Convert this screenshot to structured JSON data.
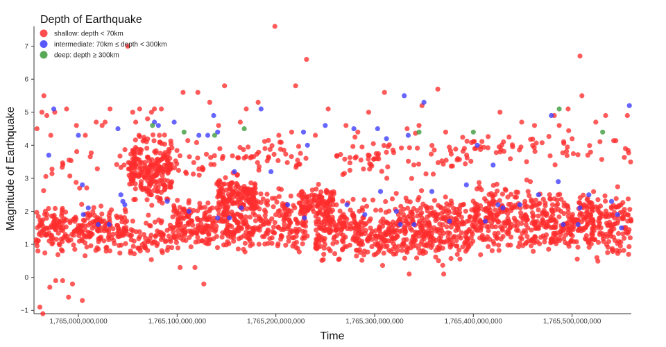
{
  "chart_data": {
    "type": "scatter",
    "title": "",
    "xlabel": "Time",
    "ylabel": "Magnitude of Earthquake",
    "xlim": [
      1764955000000,
      1765560000000
    ],
    "ylim": [
      -1.1,
      7.6
    ],
    "x_ticks": [
      {
        "value": 1765000000000,
        "label": "1,765,000,000,000"
      },
      {
        "value": 1765100000000,
        "label": "1,765,100,000,000"
      },
      {
        "value": 1765200000000,
        "label": "1,765,200,000,000"
      },
      {
        "value": 1765300000000,
        "label": "1,765,300,000,000"
      },
      {
        "value": 1765400000000,
        "label": "1,765,400,000,000"
      },
      {
        "value": 1765500000000,
        "label": "1,765,500,000,000"
      }
    ],
    "y_ticks": [
      {
        "value": -1,
        "label": "−1"
      },
      {
        "value": 0,
        "label": "0"
      },
      {
        "value": 1,
        "label": "1"
      },
      {
        "value": 2,
        "label": "2"
      },
      {
        "value": 3,
        "label": "3"
      },
      {
        "value": 4,
        "label": "4"
      },
      {
        "value": 5,
        "label": "5"
      },
      {
        "value": 6,
        "label": "6"
      },
      {
        "value": 7,
        "label": "7"
      }
    ],
    "grid": false,
    "legend": {
      "title": "Depth of Earthquake",
      "placement": "top-left"
    },
    "series": [
      {
        "name": "shallow: depth < 70km",
        "color": "#ff2d2d",
        "points": [
          [
            1764958000000,
            4.5
          ],
          [
            1764963000000,
            5.0
          ],
          [
            1764965000000,
            5.5
          ],
          [
            1764968000000,
            4.9
          ],
          [
            1764972000000,
            4.3
          ],
          [
            1764976000000,
            5.0
          ],
          [
            1764988000000,
            5.1
          ],
          [
            1764998000000,
            4.6
          ],
          [
            1765007000000,
            4.3
          ],
          [
            1765018000000,
            4.7
          ],
          [
            1765024000000,
            4.6
          ],
          [
            1765027000000,
            4.7
          ],
          [
            1765032000000,
            5.1
          ],
          [
            1765055000000,
            5.0
          ],
          [
            1765058000000,
            4.7
          ],
          [
            1765062000000,
            5.1
          ],
          [
            1765070000000,
            4.8
          ],
          [
            1765074000000,
            5.0
          ],
          [
            1765077000000,
            5.1
          ],
          [
            1765082000000,
            4.3
          ],
          [
            1765084000000,
            5.1
          ],
          [
            1765106000000,
            5.6
          ],
          [
            1765121000000,
            5.6
          ],
          [
            1765133000000,
            5.3
          ],
          [
            1765148000000,
            5.8
          ],
          [
            1765170000000,
            5.1
          ],
          [
            1765182000000,
            5.3
          ],
          [
            1765199000000,
            7.6
          ],
          [
            1765220000000,
            5.8
          ],
          [
            1765231000000,
            6.6
          ],
          [
            1765253000000,
            5.1
          ],
          [
            1765294000000,
            5.0
          ],
          [
            1765310000000,
            5.6
          ],
          [
            1765348000000,
            5.2
          ],
          [
            1765364000000,
            5.7
          ],
          [
            1765427000000,
            5.0
          ],
          [
            1765482000000,
            4.9
          ],
          [
            1765496000000,
            5.1
          ],
          [
            1765508000000,
            6.7
          ],
          [
            1765510000000,
            5.5
          ],
          [
            1765534000000,
            4.9
          ],
          [
            1765554000000,
            3.9
          ],
          [
            1765556000000,
            4.9
          ],
          [
            1765050000000,
            7.0
          ],
          [
            1765142000000,
            4.6
          ],
          [
            1765164000000,
            4.7
          ],
          [
            1765203000000,
            4.3
          ],
          [
            1765216000000,
            4.4
          ],
          [
            1765240000000,
            4.3
          ],
          [
            1765271000000,
            4.6
          ],
          [
            1765283000000,
            4.4
          ],
          [
            1765333000000,
            4.5
          ],
          [
            1765345000000,
            4.6
          ],
          [
            1765372000000,
            4.4
          ],
          [
            1765449000000,
            4.7
          ],
          [
            1765462000000,
            4.6
          ],
          [
            1765487000000,
            4.6
          ],
          [
            1765524000000,
            4.7
          ],
          [
            1764961000000,
            -0.9
          ],
          [
            1764964000000,
            -1.1
          ],
          [
            1764971000000,
            -0.3
          ],
          [
            1764977000000,
            -0.1
          ],
          [
            1764984000000,
            -0.1
          ],
          [
            1764990000000,
            -0.6
          ],
          [
            1764994000000,
            -0.2
          ],
          [
            1765004000000,
            -0.7
          ],
          [
            1765127000000,
            -0.2
          ],
          [
            1765103000000,
            0.3
          ],
          [
            1765118000000,
            0.3
          ],
          [
            1765335000000,
            0.1
          ],
          [
            1765370000000,
            0.1
          ]
        ],
        "clusters": [
          {
            "x": [
              1764957000000,
              1765050000000
            ],
            "y": [
              0.5,
              2.4
            ],
            "count": 260
          },
          {
            "x": [
              1764957000000,
              1765050000000
            ],
            "y": [
              2.2,
              4.4
            ],
            "count": 22
          },
          {
            "x": [
              1765050000000,
              1765095000000
            ],
            "y": [
              2.0,
              4.6
            ],
            "count": 230
          },
          {
            "x": [
              1765050000000,
              1765095000000
            ],
            "y": [
              0.3,
              2.0
            ],
            "count": 70
          },
          {
            "x": [
              1765095000000,
              1765160000000
            ],
            "y": [
              0.5,
              2.6
            ],
            "count": 210
          },
          {
            "x": [
              1765095000000,
              1765160000000
            ],
            "y": [
              2.6,
              4.4
            ],
            "count": 30
          },
          {
            "x": [
              1765140000000,
              1765180000000
            ],
            "y": [
              1.8,
              3.2
            ],
            "count": 130
          },
          {
            "x": [
              1765160000000,
              1765232000000
            ],
            "y": [
              0.4,
              3.0
            ],
            "count": 220
          },
          {
            "x": [
              1765160000000,
              1765232000000
            ],
            "y": [
              3.0,
              4.4
            ],
            "count": 40
          },
          {
            "x": [
              1765225000000,
              1765260000000
            ],
            "y": [
              1.6,
              3.0
            ],
            "count": 90
          },
          {
            "x": [
              1765240000000,
              1765320000000
            ],
            "y": [
              0.2,
              2.6
            ],
            "count": 280
          },
          {
            "x": [
              1765260000000,
              1765320000000
            ],
            "y": [
              2.6,
              4.5
            ],
            "count": 40
          },
          {
            "x": [
              1765320000000,
              1765400000000
            ],
            "y": [
              0.2,
              2.8
            ],
            "count": 300
          },
          {
            "x": [
              1765320000000,
              1765400000000
            ],
            "y": [
              2.8,
              4.6
            ],
            "count": 35
          },
          {
            "x": [
              1765400000000,
              1765460000000
            ],
            "y": [
              0.4,
              3.2
            ],
            "count": 220
          },
          {
            "x": [
              1765400000000,
              1765460000000
            ],
            "y": [
              3.2,
              4.6
            ],
            "count": 25
          },
          {
            "x": [
              1765460000000,
              1765560000000
            ],
            "y": [
              0.3,
              3.0
            ],
            "count": 360
          },
          {
            "x": [
              1765460000000,
              1765560000000
            ],
            "y": [
              3.0,
              4.6
            ],
            "count": 30
          }
        ]
      },
      {
        "name": "intermediate: 70km ≤ depth < 300km",
        "color": "#3b3bff",
        "points": [
          [
            1764970000000,
            3.7
          ],
          [
            1764975000000,
            5.1
          ],
          [
            1765000000000,
            4.3
          ],
          [
            1765004000000,
            2.8
          ],
          [
            1765005000000,
            1.9
          ],
          [
            1765010000000,
            2.1
          ],
          [
            1765020000000,
            1.6
          ],
          [
            1765031000000,
            1.6
          ],
          [
            1765040000000,
            4.5
          ],
          [
            1765043000000,
            2.5
          ],
          [
            1765045000000,
            2.3
          ],
          [
            1765047000000,
            2.2
          ],
          [
            1765077000000,
            4.7
          ],
          [
            1765081000000,
            4.6
          ],
          [
            1765090000000,
            2.3
          ],
          [
            1765097000000,
            4.7
          ],
          [
            1765112000000,
            2.0
          ],
          [
            1765122000000,
            4.3
          ],
          [
            1765131000000,
            4.3
          ],
          [
            1765137000000,
            4.9
          ],
          [
            1765141000000,
            4.4
          ],
          [
            1765141000000,
            1.8
          ],
          [
            1765153000000,
            1.8
          ],
          [
            1765158000000,
            3.2
          ],
          [
            1765165000000,
            2.1
          ],
          [
            1765185000000,
            5.1
          ],
          [
            1765195000000,
            3.2
          ],
          [
            1765212000000,
            2.2
          ],
          [
            1765228000000,
            4.4
          ],
          [
            1765229000000,
            1.8
          ],
          [
            1765232000000,
            4.0
          ],
          [
            1765250000000,
            4.6
          ],
          [
            1765272000000,
            2.2
          ],
          [
            1765279000000,
            4.5
          ],
          [
            1765290000000,
            1.9
          ],
          [
            1765303000000,
            4.5
          ],
          [
            1765306000000,
            2.6
          ],
          [
            1765312000000,
            4.2
          ],
          [
            1765322000000,
            2.0
          ],
          [
            1765326000000,
            1.6
          ],
          [
            1765330000000,
            5.5
          ],
          [
            1765334000000,
            4.3
          ],
          [
            1765340000000,
            1.6
          ],
          [
            1765350000000,
            5.3
          ],
          [
            1765358000000,
            2.6
          ],
          [
            1765376000000,
            1.7
          ],
          [
            1765393000000,
            2.8
          ],
          [
            1765404000000,
            4.0
          ],
          [
            1765412000000,
            1.7
          ],
          [
            1765420000000,
            3.4
          ],
          [
            1765425000000,
            2.2
          ],
          [
            1765430000000,
            2.1
          ],
          [
            1765447000000,
            2.2
          ],
          [
            1765466000000,
            2.5
          ],
          [
            1765479000000,
            4.9
          ],
          [
            1765486000000,
            2.9
          ],
          [
            1765491000000,
            1.6
          ],
          [
            1765506000000,
            1.6
          ],
          [
            1765508000000,
            2.1
          ],
          [
            1765517000000,
            2.5
          ],
          [
            1765540000000,
            2.3
          ],
          [
            1765546000000,
            1.9
          ],
          [
            1765550000000,
            1.5
          ],
          [
            1765558000000,
            5.2
          ]
        ]
      },
      {
        "name": "deep: depth ≥ 300km",
        "color": "#3a9a3a",
        "points": [
          [
            1765075000000,
            4.6
          ],
          [
            1765107000000,
            4.4
          ],
          [
            1765138000000,
            4.3
          ],
          [
            1765168000000,
            4.5
          ],
          [
            1765345000000,
            4.4
          ],
          [
            1765400000000,
            4.4
          ],
          [
            1765487000000,
            5.1
          ],
          [
            1765531000000,
            4.4
          ]
        ]
      }
    ]
  }
}
